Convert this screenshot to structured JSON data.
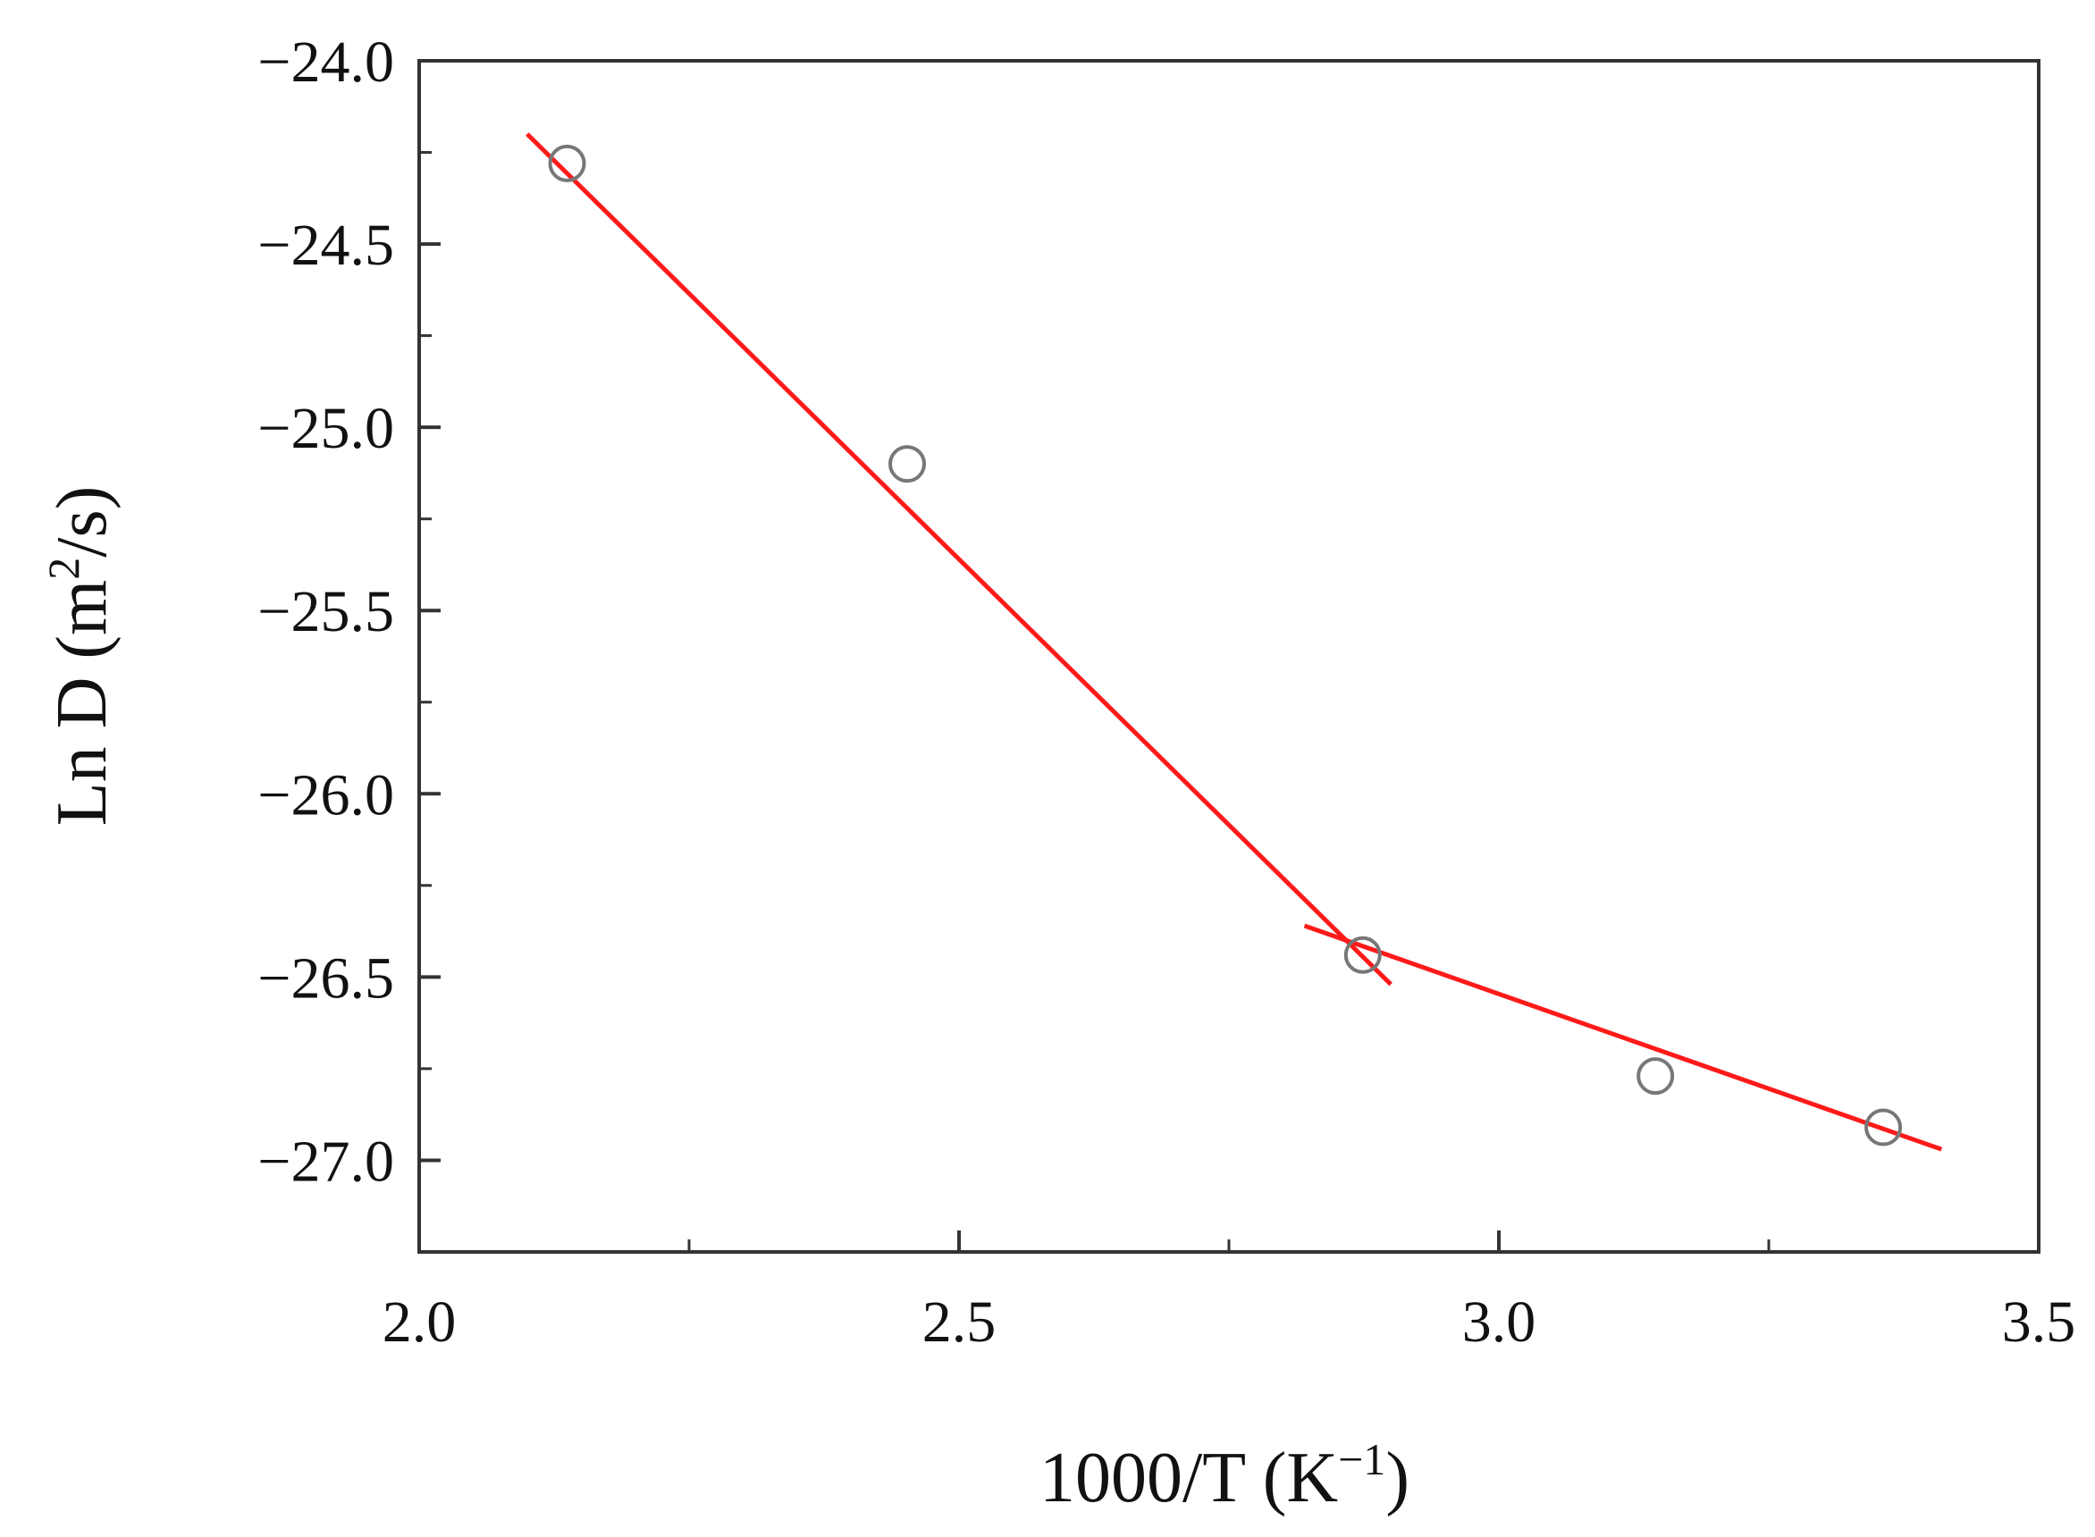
{
  "chart_data": {
    "type": "scatter",
    "xlabel": "1000/T (K",
    "xlabel_sup": "−1",
    "xlabel_end": ")",
    "ylabel": "Ln D (m",
    "ylabel_sup": "2",
    "ylabel_end": "/s)",
    "xlim": [
      2.0,
      3.5
    ],
    "ylim": [
      -27.25,
      -24.0
    ],
    "xticks": [
      2.0,
      2.5,
      3.0,
      3.5
    ],
    "xtick_labels": [
      "2.0",
      "2.5",
      "3.0",
      "3.5"
    ],
    "xminor_ticks": [
      2.25,
      2.75,
      3.25
    ],
    "yticks": [
      -24.0,
      -24.5,
      -25.0,
      -25.5,
      -26.0,
      -26.5,
      -27.0
    ],
    "ytick_labels": [
      "−24.0",
      "−24.5",
      "−25.0",
      "−25.5",
      "−26.0",
      "−26.5",
      "−27.0"
    ],
    "yminor_ticks": [
      -24.25,
      -24.75,
      -25.25,
      -25.75,
      -26.25,
      -26.75
    ],
    "grid": false,
    "points": {
      "marker": "open-circle",
      "color": "#777777",
      "x": [
        2.137,
        2.452,
        2.874,
        3.145,
        3.356
      ],
      "y": [
        -24.28,
        -25.1,
        -26.44,
        -26.77,
        -26.91
      ]
    },
    "fit_lines": [
      {
        "color": "#ff1a1a",
        "x": [
          2.1,
          2.9
        ],
        "y": [
          -24.2,
          -26.52
        ]
      },
      {
        "color": "#ff1a1a",
        "x": [
          2.82,
          3.41
        ],
        "y": [
          -26.36,
          -26.97
        ]
      }
    ]
  }
}
